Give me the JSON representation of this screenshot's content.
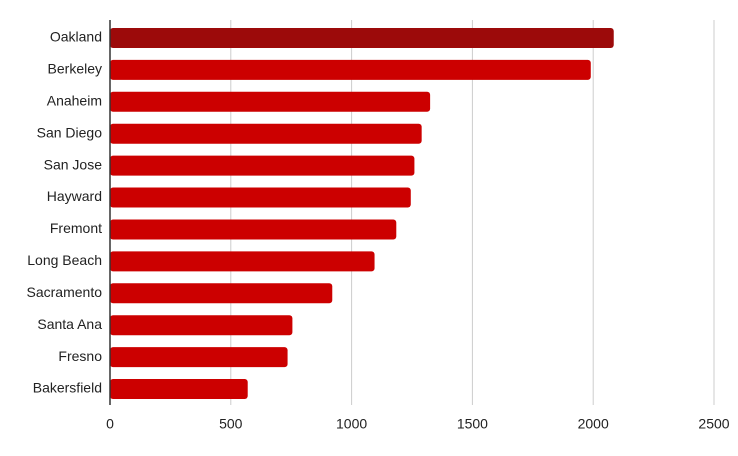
{
  "chart_data": {
    "type": "barh",
    "categories": [
      "Oakland",
      "Berkeley",
      "Anaheim",
      "San Diego",
      "San Jose",
      "Hayward",
      "Fremont",
      "Long Beach",
      "Sacramento",
      "Santa Ana",
      "Fresno",
      "Bakersfield"
    ],
    "values": [
      2085,
      1990,
      1325,
      1290,
      1260,
      1245,
      1185,
      1095,
      920,
      755,
      735,
      570
    ],
    "colors": [
      "#9c0a0a",
      "#cc0000",
      "#cc0000",
      "#cc0000",
      "#cc0000",
      "#cc0000",
      "#cc0000",
      "#cc0000",
      "#cc0000",
      "#cc0000",
      "#cc0000",
      "#cc0000"
    ],
    "xlim": [
      0,
      2500
    ],
    "xticks": [
      0,
      500,
      1000,
      1500,
      2000,
      2500
    ],
    "grid": true
  }
}
